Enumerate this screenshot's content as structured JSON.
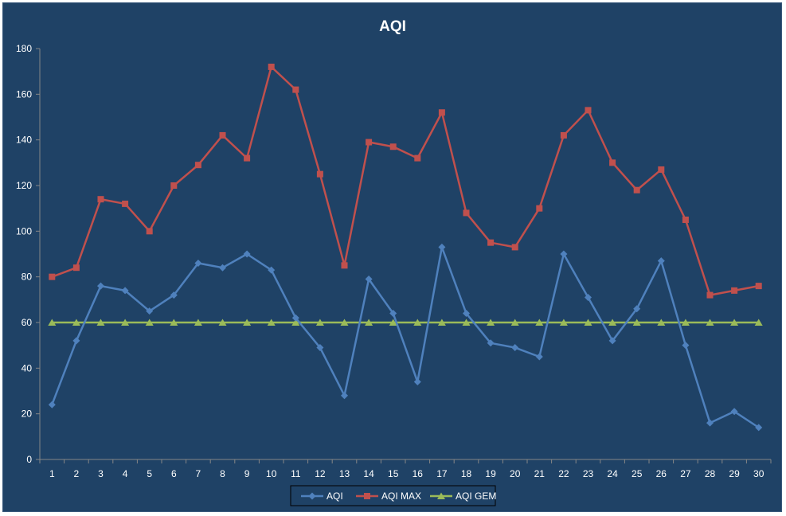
{
  "chart_data": {
    "type": "line",
    "title": "AQI",
    "xlabel": "",
    "ylabel": "",
    "categories": [
      "1",
      "2",
      "3",
      "4",
      "5",
      "6",
      "7",
      "8",
      "9",
      "10",
      "11",
      "12",
      "13",
      "14",
      "15",
      "16",
      "17",
      "18",
      "19",
      "20",
      "21",
      "22",
      "23",
      "24",
      "25",
      "26",
      "27",
      "28",
      "29",
      "30"
    ],
    "ylim": [
      0,
      180
    ],
    "yticks": [
      0,
      20,
      40,
      60,
      80,
      100,
      120,
      140,
      160,
      180
    ],
    "grid": false,
    "legend_position": "bottom",
    "series": [
      {
        "name": "AQI",
        "color": "#4f81bd",
        "marker": "diamond",
        "values": [
          24,
          52,
          76,
          74,
          65,
          72,
          86,
          84,
          90,
          83,
          62,
          49,
          28,
          79,
          64,
          34,
          93,
          64,
          51,
          49,
          45,
          90,
          71,
          52,
          66,
          87,
          50,
          16,
          21,
          14
        ]
      },
      {
        "name": "AQI MAX",
        "color": "#c0504d",
        "marker": "square",
        "values": [
          80,
          84,
          114,
          112,
          100,
          120,
          129,
          142,
          132,
          172,
          162,
          125,
          85,
          139,
          137,
          132,
          152,
          108,
          95,
          93,
          110,
          142,
          153,
          130,
          118,
          127,
          105,
          72,
          74,
          76
        ]
      },
      {
        "name": "AQI GEM",
        "color": "#9bbb59",
        "marker": "triangle",
        "values": [
          60,
          60,
          60,
          60,
          60,
          60,
          60,
          60,
          60,
          60,
          60,
          60,
          60,
          60,
          60,
          60,
          60,
          60,
          60,
          60,
          60,
          60,
          60,
          60,
          60,
          60,
          60,
          60,
          60,
          60
        ]
      }
    ]
  }
}
